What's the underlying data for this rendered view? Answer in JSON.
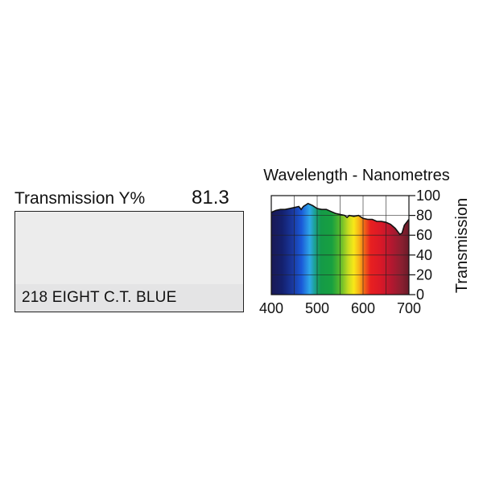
{
  "filter": {
    "transmission_label": "Transmission Y%",
    "transmission_value": "81.3",
    "name": "218 EIGHT C.T. BLUE",
    "swatch_color": "#ececec"
  },
  "chart_data": {
    "type": "area",
    "title": "Wavelength - Nanometres",
    "ylabel": "Transmission",
    "xlabel": "",
    "xlim": [
      400,
      700
    ],
    "ylim": [
      0,
      100
    ],
    "x_ticks": [
      400,
      500,
      600,
      700
    ],
    "y_ticks": [
      0,
      20,
      40,
      60,
      80,
      100
    ],
    "x_tick_labels": [
      "400",
      "500",
      "600",
      "700"
    ],
    "y_tick_labels": [
      "0",
      "20",
      "40",
      "60",
      "80",
      "100"
    ],
    "grid": true,
    "series": [
      {
        "x": [
          400,
          410,
          420,
          430,
          440,
          450,
          460,
          465,
          470,
          480,
          490,
          500,
          510,
          520,
          530,
          540,
          550,
          560,
          565,
          570,
          580,
          590,
          600,
          610,
          620,
          630,
          640,
          650,
          660,
          670,
          680,
          685,
          690,
          700
        ],
        "y": [
          83,
          85,
          86,
          86,
          87,
          88,
          89,
          86,
          89,
          92,
          90,
          87,
          86,
          86,
          84,
          82,
          81,
          80,
          78,
          80,
          79,
          80,
          77,
          76,
          76,
          74,
          74,
          73,
          71,
          67,
          61,
          62,
          70,
          76
        ]
      }
    ]
  }
}
